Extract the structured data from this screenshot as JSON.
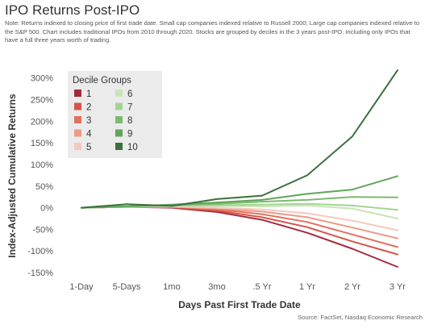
{
  "title": "IPO Returns Post-IPO",
  "note": "Note: Returns indexed to closing price of first trade date. Small cap companies indexed relative to Russell 2000; Large cap companies indexed relative to the S&P 500. Chart includes traditional IPOs from 2010 through 2020. Stocks are grouped by deciles in the 3 years post-IPO. Including only IPOs that have a full three years worth of trading.",
  "source": "Source: FactSet, Nasdaq Economic Research",
  "chart_data": {
    "type": "line",
    "xlabel": "Days Past First Trade Date",
    "ylabel": "Index-Adjusted Cumulative Returns",
    "categories": [
      "1-Day",
      "5-Days",
      "1mo",
      "3mo",
      ".5 Yr",
      "1 Yr",
      "2 Yr",
      "3 Yr"
    ],
    "y_ticks": [
      "-150%",
      "-100%",
      "-50%",
      "0%",
      "50%",
      "100%",
      "150%",
      "200%",
      "250%",
      "300%"
    ],
    "ylim": [
      -150,
      320
    ],
    "grid": false,
    "legend": {
      "title": "Decile Groups",
      "placement": "top-left"
    },
    "series": [
      {
        "name": "1",
        "color": "#a42a3e",
        "values": [
          0,
          2,
          0,
          -10,
          -28,
          -58,
          -95,
          -137
        ]
      },
      {
        "name": "2",
        "color": "#d45548",
        "values": [
          0,
          2,
          1,
          -7,
          -22,
          -45,
          -78,
          -108
        ]
      },
      {
        "name": "3",
        "color": "#e0705f",
        "values": [
          0,
          2,
          2,
          -4,
          -15,
          -33,
          -62,
          -91
        ]
      },
      {
        "name": "4",
        "color": "#ec9a85",
        "values": [
          0,
          2,
          2,
          -2,
          -9,
          -22,
          -46,
          -71
        ]
      },
      {
        "name": "5",
        "color": "#f6c8bc",
        "values": [
          0,
          2,
          3,
          0,
          -4,
          -13,
          -30,
          -52
        ]
      },
      {
        "name": "6",
        "color": "#c8e4b8",
        "values": [
          0,
          3,
          4,
          4,
          3,
          5,
          -2,
          -25
        ]
      },
      {
        "name": "7",
        "color": "#a3d393",
        "values": [
          0,
          3,
          5,
          6,
          7,
          9,
          5,
          -5
        ]
      },
      {
        "name": "8",
        "color": "#7cba6d",
        "values": [
          0,
          3,
          6,
          9,
          14,
          18,
          25,
          24
        ]
      },
      {
        "name": "9",
        "color": "#5fa659",
        "values": [
          0,
          3,
          7,
          12,
          18,
          32,
          42,
          73
        ]
      },
      {
        "name": "10",
        "color": "#3b6f3c",
        "values": [
          0,
          8,
          4,
          20,
          28,
          75,
          165,
          318
        ]
      }
    ]
  }
}
